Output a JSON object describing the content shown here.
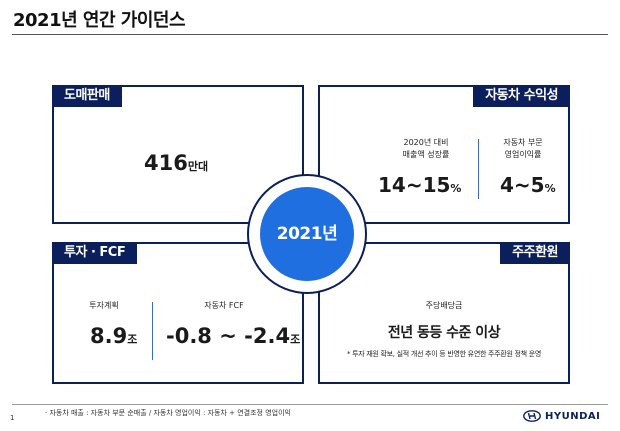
{
  "title": "2021년 연간 가이던스",
  "center": {
    "year": "2021년"
  },
  "wholesale": {
    "label": "도매판매",
    "value": "416",
    "unit": "만대"
  },
  "auto_profit": {
    "label": "자동차 수익성",
    "growth_caption_1": "2020년 대비",
    "growth_caption_2": "매출액 성장률",
    "growth_value": "14~15",
    "growth_unit": "%",
    "margin_caption_1": "자동차 부문",
    "margin_caption_2": "영업이익률",
    "margin_value": "4~5",
    "margin_unit": "%"
  },
  "invest": {
    "label": "투자 · FCF",
    "plan_caption": "투자계획",
    "plan_value": "8.9",
    "plan_unit": "조",
    "fcf_caption": "자동차 FCF",
    "fcf_value": "-0.8 ~ -2.4",
    "fcf_unit": "조"
  },
  "shareholder": {
    "label": "주주환원",
    "caption": "주당배당금",
    "headline": "전년 동등 수준 이상",
    "note": "* 투자 재원 확보, 실적 개선 추이 등 반영한 유연한 주주환원 정책 운영"
  },
  "footer": {
    "page": "1",
    "note": "· 자동차 매출 : 자동차 부문 순매출 / 자동차 영업이익 : 자동차 + 연결조정 영업이익",
    "brand": "HYUNDAI"
  },
  "colors": {
    "navy": "#0b1f5c",
    "blue": "#1f6fe0"
  }
}
